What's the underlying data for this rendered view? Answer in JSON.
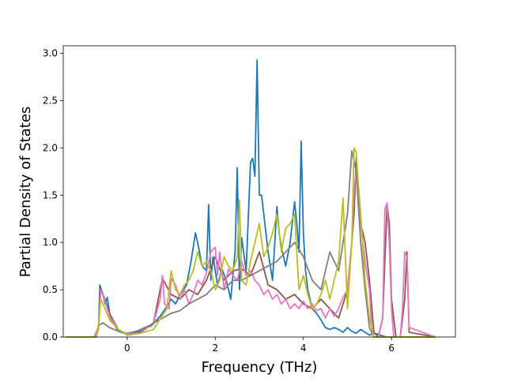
{
  "chart_data": {
    "type": "line",
    "title": "",
    "xlabel": "Frequency (THz)",
    "ylabel": "Partial Density of States",
    "xlim": [
      -1.45,
      7.45
    ],
    "ylim": [
      0,
      3.08
    ],
    "xticks": [
      0,
      2,
      4,
      6
    ],
    "yticks": [
      0.0,
      0.5,
      1.0,
      1.5,
      2.0,
      2.5,
      3.0
    ],
    "xtick_labels": [
      "0",
      "2",
      "4",
      "6"
    ],
    "ytick_labels": [
      "0.0",
      "0.5",
      "1.0",
      "1.5",
      "2.0",
      "2.5",
      "3.0"
    ],
    "grid": false,
    "legend": "none",
    "series": [
      {
        "color": "#1f77b4",
        "x": [
          -1.4,
          -0.75,
          -0.65,
          -0.62,
          -0.55,
          -0.5,
          -0.45,
          -0.38,
          -0.2,
          0,
          0.3,
          0.55,
          0.75,
          0.9,
          1.0,
          1.1,
          1.2,
          1.35,
          1.45,
          1.55,
          1.6,
          1.7,
          1.8,
          1.85,
          1.9,
          1.95,
          2.05,
          2.15,
          2.25,
          2.35,
          2.45,
          2.5,
          2.55,
          2.6,
          2.7,
          2.8,
          2.85,
          2.9,
          2.95,
          3.0,
          3.05,
          3.1,
          3.2,
          3.3,
          3.4,
          3.45,
          3.5,
          3.6,
          3.7,
          3.8,
          3.85,
          3.9,
          3.95,
          4.0,
          4.05,
          4.1,
          4.2,
          4.3,
          4.4,
          4.5,
          4.6,
          4.7,
          4.8,
          4.9,
          5.0,
          5.1,
          5.2,
          5.3,
          5.4,
          5.5,
          5.6,
          5.7,
          5.8,
          5.9,
          7.0
        ],
        "y": [
          0,
          0,
          0.08,
          0.55,
          0.45,
          0.35,
          0.42,
          0.2,
          0.06,
          0.03,
          0.06,
          0.12,
          0.22,
          0.32,
          0.4,
          0.35,
          0.45,
          0.55,
          0.8,
          1.1,
          1.0,
          0.75,
          0.7,
          1.4,
          0.6,
          0.85,
          0.55,
          0.72,
          0.6,
          0.4,
          0.9,
          1.79,
          0.5,
          1.05,
          0.7,
          1.85,
          1.89,
          1.7,
          2.93,
          1.5,
          1.5,
          1.3,
          0.9,
          0.6,
          1.38,
          1.1,
          0.95,
          0.75,
          1.0,
          1.43,
          1.2,
          0.9,
          2.07,
          1.1,
          0.7,
          0.5,
          0.3,
          0.25,
          0.18,
          0.1,
          0.08,
          0.1,
          0.08,
          0.05,
          0.1,
          0.06,
          0.04,
          0.08,
          0.05,
          0.02,
          0.04,
          0.03,
          0.01,
          0.0,
          0.0
        ]
      },
      {
        "color": "#8c564b",
        "x": [
          -1.4,
          -0.75,
          -0.65,
          -0.6,
          -0.5,
          -0.4,
          -0.2,
          0,
          0.3,
          0.6,
          0.8,
          1.0,
          1.2,
          1.4,
          1.6,
          1.8,
          2.0,
          2.2,
          2.4,
          2.6,
          2.8,
          3.0,
          3.2,
          3.4,
          3.6,
          3.8,
          4.0,
          4.2,
          4.4,
          4.6,
          4.8,
          5.0,
          5.1,
          5.15,
          5.2,
          5.3,
          5.4,
          5.5,
          5.6,
          5.7,
          5.8,
          5.9,
          5.95,
          6.0,
          6.1,
          6.2,
          6.3,
          6.35,
          6.4,
          7.0
        ],
        "y": [
          0,
          0,
          0.1,
          0.5,
          0.4,
          0.25,
          0.08,
          0.02,
          0.05,
          0.15,
          0.62,
          0.45,
          0.4,
          0.5,
          0.45,
          0.6,
          0.85,
          0.6,
          0.7,
          0.72,
          0.65,
          0.9,
          0.55,
          0.5,
          0.4,
          0.45,
          0.35,
          0.3,
          0.4,
          0.3,
          0.2,
          0.5,
          1.0,
          1.3,
          1.9,
          1.2,
          1.0,
          0.6,
          0.05,
          0.0,
          0.2,
          1.4,
          1.2,
          0.4,
          0.0,
          0.0,
          0.4,
          0.9,
          0.05,
          0.0
        ]
      },
      {
        "color": "#e377c2",
        "x": [
          -1.4,
          -0.75,
          -0.65,
          -0.6,
          -0.5,
          -0.4,
          -0.2,
          0,
          0.3,
          0.6,
          0.75,
          0.8,
          0.85,
          0.95,
          1.0,
          1.1,
          1.2,
          1.3,
          1.4,
          1.5,
          1.6,
          1.7,
          1.8,
          1.9,
          2.0,
          2.05,
          2.1,
          2.2,
          2.3,
          2.4,
          2.5,
          2.6,
          2.7,
          2.8,
          2.9,
          3.0,
          3.1,
          3.2,
          3.3,
          3.4,
          3.5,
          3.6,
          3.7,
          3.8,
          3.9,
          4.0,
          4.1,
          4.2,
          4.3,
          4.4,
          4.5,
          4.6,
          4.7,
          4.8,
          4.9,
          5.0,
          5.1,
          5.15,
          5.2,
          5.25,
          5.3,
          5.4,
          5.5,
          5.55,
          5.6,
          5.7,
          5.8,
          5.85,
          5.9,
          5.95,
          6.0,
          6.05,
          6.1,
          6.2,
          6.25,
          6.3,
          6.35,
          6.4,
          7.0
        ],
        "y": [
          0,
          0,
          0.1,
          0.5,
          0.38,
          0.22,
          0.08,
          0.02,
          0.04,
          0.15,
          0.4,
          0.65,
          0.35,
          0.3,
          0.62,
          0.55,
          0.4,
          0.5,
          0.35,
          0.45,
          0.6,
          0.55,
          0.68,
          0.9,
          0.95,
          0.65,
          0.9,
          0.5,
          0.72,
          0.65,
          0.6,
          0.8,
          0.65,
          0.7,
          0.6,
          0.55,
          0.45,
          0.5,
          0.4,
          0.45,
          0.35,
          0.4,
          0.3,
          0.35,
          0.3,
          0.38,
          0.3,
          0.35,
          0.28,
          0.3,
          0.2,
          0.3,
          0.22,
          0.3,
          0.42,
          0.5,
          1.0,
          1.55,
          1.78,
          1.4,
          1.2,
          0.8,
          0.5,
          0.1,
          0.0,
          0.0,
          0.2,
          1.35,
          1.42,
          1.0,
          0.3,
          0.0,
          0.0,
          0.0,
          0.3,
          0.9,
          0.85,
          0.1,
          0.0
        ]
      },
      {
        "color": "#7f7f7f",
        "x": [
          -1.4,
          -0.7,
          -0.65,
          -0.55,
          -0.4,
          -0.2,
          0,
          0.2,
          0.5,
          0.8,
          1.0,
          1.2,
          1.4,
          1.6,
          1.8,
          2.0,
          2.2,
          2.4,
          2.6,
          2.8,
          3.0,
          3.2,
          3.4,
          3.6,
          3.8,
          4.0,
          4.2,
          4.4,
          4.6,
          4.8,
          5.0,
          5.1,
          5.2,
          5.3,
          5.4,
          5.5,
          5.6,
          5.7,
          7.0
        ],
        "y": [
          0,
          0,
          0.12,
          0.15,
          0.1,
          0.06,
          0.04,
          0.06,
          0.12,
          0.2,
          0.25,
          0.28,
          0.35,
          0.4,
          0.45,
          0.55,
          0.5,
          0.6,
          0.6,
          0.65,
          0.7,
          0.75,
          0.8,
          0.9,
          1.0,
          0.85,
          0.6,
          0.5,
          0.9,
          0.7,
          1.3,
          1.97,
          1.75,
          1.0,
          0.5,
          0.1,
          0.0,
          0.0,
          0.0
        ]
      },
      {
        "color": "#bcbd22",
        "x": [
          -1.4,
          -0.7,
          -0.65,
          -0.6,
          -0.5,
          -0.4,
          -0.2,
          0,
          0.3,
          0.6,
          0.9,
          1.0,
          1.1,
          1.2,
          1.3,
          1.4,
          1.5,
          1.6,
          1.7,
          1.8,
          1.9,
          2.0,
          2.1,
          2.2,
          2.3,
          2.4,
          2.5,
          2.55,
          2.6,
          2.7,
          2.8,
          2.9,
          3.0,
          3.1,
          3.2,
          3.3,
          3.4,
          3.5,
          3.6,
          3.7,
          3.8,
          3.9,
          4.0,
          4.1,
          4.2,
          4.3,
          4.4,
          4.5,
          4.6,
          4.7,
          4.8,
          4.9,
          5.0,
          5.1,
          5.15,
          5.2,
          5.25,
          5.3,
          5.4,
          5.5,
          5.6,
          5.7,
          7.0
        ],
        "y": [
          0,
          0,
          0.1,
          0.4,
          0.3,
          0.18,
          0.08,
          0.03,
          0.04,
          0.08,
          0.3,
          0.7,
          0.5,
          0.45,
          0.55,
          0.6,
          0.7,
          0.9,
          0.75,
          0.8,
          0.7,
          0.5,
          0.6,
          0.85,
          0.75,
          0.7,
          0.85,
          1.45,
          0.6,
          0.55,
          0.8,
          1.0,
          1.2,
          0.85,
          0.95,
          1.1,
          1.3,
          0.9,
          1.15,
          1.2,
          1.3,
          0.5,
          0.65,
          0.45,
          0.3,
          0.35,
          0.45,
          0.6,
          0.4,
          0.6,
          0.8,
          1.47,
          0.3,
          1.0,
          2.0,
          1.95,
          1.6,
          1.3,
          0.6,
          0.2,
          0.0,
          0.0,
          0.0
        ]
      }
    ]
  }
}
